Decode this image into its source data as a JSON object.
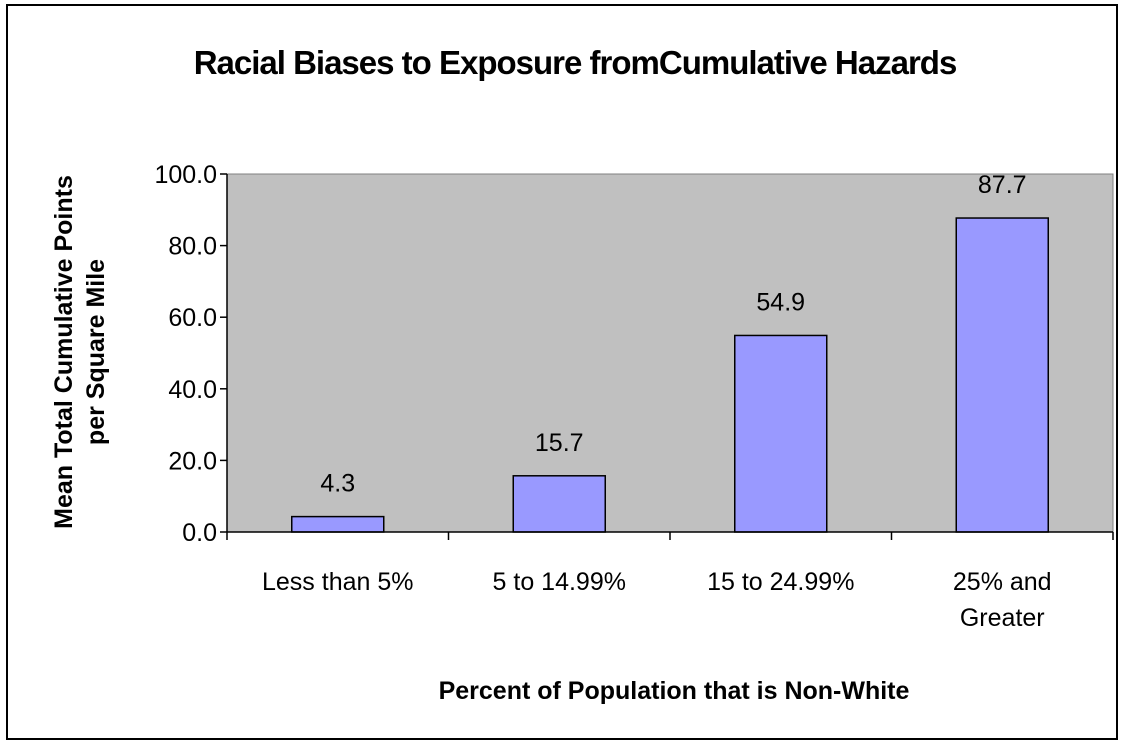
{
  "chart_data": {
    "type": "bar",
    "title": "Racial Biases to Exposure fromCumulative Hazards",
    "categories": [
      [
        "Less than 5%"
      ],
      [
        "5 to 14.99%"
      ],
      [
        "15 to 24.99%"
      ],
      [
        "25% and",
        "Greater"
      ]
    ],
    "values": [
      4.3,
      15.7,
      54.9,
      87.7
    ],
    "value_labels": [
      "4.3",
      "15.7",
      "54.9",
      "87.7"
    ],
    "xlabel": "Percent of Population that is Non-White",
    "ylabel": [
      "Mean Total Cumulative Points",
      "per Square Mile"
    ],
    "ylim": [
      0,
      100
    ],
    "yticks": [
      "0.0",
      "20.0",
      "40.0",
      "60.0",
      "80.0",
      "100.0"
    ],
    "grid": false,
    "legend": "none",
    "colors": {
      "plot_background": "#c0c0c0",
      "bar_fill": "#9999ff",
      "bar_stroke": "#000000"
    }
  }
}
